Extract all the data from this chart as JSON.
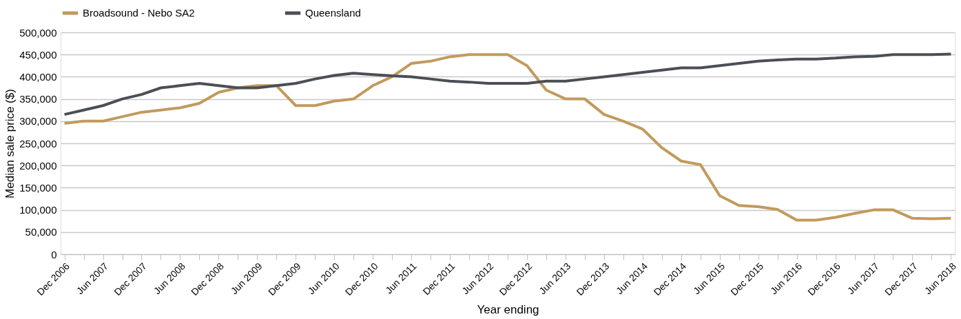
{
  "chart_data": {
    "type": "line",
    "xlabel": "Year ending",
    "ylabel": "Median sale price ($)",
    "categories": [
      "Dec 2006",
      null,
      "Jun 2007",
      null,
      "Dec 2007",
      null,
      "Jun 2008",
      null,
      "Dec 2008",
      null,
      "Jun 2009",
      null,
      "Dec 2009",
      null,
      "Jun 2010",
      null,
      "Dec 2010",
      null,
      "Jun 2011",
      null,
      "Dec 2011",
      null,
      "Jun 2012",
      null,
      "Dec 2012",
      null,
      "Jun 2013",
      null,
      "Dec 2013",
      null,
      "Jun 2014",
      null,
      "Dec 2014",
      null,
      "Jun 2015",
      null,
      "Dec 2015",
      null,
      "Jun 2016",
      null,
      "Dec 2016",
      null,
      "Jun 2017",
      null,
      "Dec 2017",
      null,
      "Jun 2018"
    ],
    "series": [
      {
        "name": "Broadsound - Nebo SA2",
        "color": "#c19a5b",
        "values": [
          295000,
          300000,
          300000,
          310000,
          320000,
          325000,
          330000,
          340000,
          365000,
          375000,
          380000,
          380000,
          335000,
          335000,
          345000,
          350000,
          380000,
          400000,
          430000,
          435000,
          445000,
          450000,
          450000,
          450000,
          425000,
          370000,
          350000,
          350000,
          315000,
          300000,
          282000,
          240000,
          210000,
          202000,
          132000,
          110000,
          107000,
          101000,
          77000,
          77000,
          83000,
          92000,
          100000,
          100000,
          81000,
          80000,
          81000
        ]
      },
      {
        "name": "Queensland",
        "color": "#4a4f55",
        "values": [
          315000,
          325000,
          335000,
          350000,
          360000,
          375000,
          380000,
          385000,
          380000,
          375000,
          375000,
          380000,
          385000,
          395000,
          403000,
          408000,
          405000,
          402000,
          400000,
          395000,
          390000,
          388000,
          385000,
          385000,
          385000,
          390000,
          390000,
          395000,
          400000,
          405000,
          410000,
          415000,
          420000,
          420000,
          425000,
          430000,
          435000,
          438000,
          440000,
          440000,
          442000,
          445000,
          446000,
          450000,
          450000,
          450000,
          451000
        ]
      }
    ],
    "ylim": [
      0,
      500000
    ],
    "yticks": [
      0,
      {
        "value": 50000,
        "label": "50,000"
      },
      {
        "value": 100000,
        "label": "100,000"
      },
      {
        "value": 150000,
        "label": "150,000"
      },
      {
        "value": 200000,
        "label": "200,000"
      },
      {
        "value": 250000,
        "label": "250,000"
      },
      {
        "value": 300000,
        "label": "300,000"
      },
      {
        "value": 350000,
        "label": "350,000"
      },
      {
        "value": 400000,
        "label": "400,000"
      },
      {
        "value": 450000,
        "label": "450,000"
      },
      {
        "value": 500000,
        "label": "500,000"
      }
    ],
    "grid": "y",
    "legend": "top",
    "line_style": "solid",
    "marker": "none"
  }
}
